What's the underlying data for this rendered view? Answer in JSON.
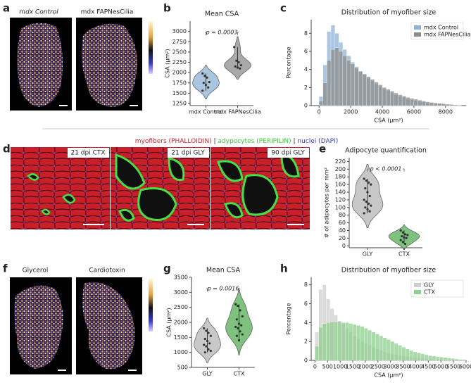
{
  "figure": {
    "panel_letters": [
      "a",
      "b",
      "c",
      "d",
      "e",
      "f",
      "g",
      "h"
    ],
    "a": {
      "labels": [
        "mdx Control",
        "mdx FAPNesCilia"
      ]
    },
    "d": {
      "legend": [
        {
          "text": "myofibers (PHALLOIDIN)",
          "color": "#d0202a"
        },
        {
          "text": " | ",
          "color": "#222222"
        },
        {
          "text": "adypocytes (PERIPILIN)",
          "color": "#3cc43c"
        },
        {
          "text": " | ",
          "color": "#222222"
        },
        {
          "text": "nuclei (DAPI)",
          "color": "#3a3ad0"
        }
      ],
      "labels": [
        "21 dpi CTX",
        "21 dpi GLY",
        "90 dpi GLY"
      ]
    },
    "f": {
      "labels": [
        "Glycerol",
        "Cardiotoxin"
      ]
    }
  },
  "chart_data": [
    {
      "type": "violin",
      "title": "Mean CSA",
      "ylabel": "CSA (μm²)",
      "annotation": "p = 0.0003",
      "categories": [
        "mdx Control",
        "mdx FAPNesCilia"
      ],
      "colors": [
        "#a9c6de",
        "#a9a9a9"
      ],
      "values": [
        [
          1980,
          1920,
          1880,
          1770,
          1750,
          1700,
          1640,
          1560
        ],
        [
          2620,
          2290,
          2250,
          2180,
          2150,
          2120,
          2100
        ]
      ],
      "ylim": [
        1200,
        3250
      ],
      "yticks": [
        1250,
        1500,
        1750,
        2000,
        2250,
        2500,
        2750,
        3000
      ]
    },
    {
      "type": "histogram",
      "title": "Distribution of myofiber size",
      "xlabel": "CSA (μm²)",
      "ylabel": "Percentage",
      "legend": "upper right",
      "bins": [
        0,
        250,
        500,
        750,
        1000,
        1250,
        1500,
        1750,
        2000,
        2250,
        2500,
        2750,
        3000,
        3250,
        3500,
        3750,
        4000,
        4250,
        4500,
        4750,
        5000,
        5250,
        5500,
        5750,
        6000,
        6250,
        6500,
        6750,
        7000,
        7250,
        7500,
        7750,
        8000,
        8250,
        8500,
        8750,
        9000
      ],
      "series": [
        {
          "name": "mdx Control",
          "color": "#8fb3d6",
          "values": [
            1.0,
            4.5,
            8.2,
            8.9,
            8.0,
            7.0,
            6.2,
            5.5,
            4.8,
            4.3,
            3.8,
            3.4,
            3.0,
            2.7,
            2.4,
            2.1,
            1.8,
            1.6,
            1.4,
            1.2,
            1.0,
            0.9,
            0.75,
            0.65,
            0.55,
            0.45,
            0.4,
            0.3,
            0.25,
            0.2,
            0.15,
            0.12,
            0.1,
            0.08,
            0.05,
            0.03
          ]
        },
        {
          "name": "mdx FAPNesCilia",
          "color": "#8c8c8c",
          "values": [
            0.5,
            2.5,
            5.0,
            6.2,
            6.4,
            6.0,
            5.5,
            5.0,
            4.6,
            4.2,
            3.8,
            3.5,
            3.2,
            2.9,
            2.6,
            2.3,
            2.0,
            1.8,
            1.6,
            1.4,
            1.2,
            1.05,
            0.9,
            0.8,
            0.7,
            0.6,
            0.5,
            0.42,
            0.35,
            0.3,
            0.25,
            0.2,
            0.15,
            0.12,
            0.08,
            0.05
          ]
        }
      ],
      "xlim": [
        -500,
        9300
      ],
      "xticks": [
        0,
        2000,
        4000,
        6000,
        8000
      ],
      "ylim": [
        0,
        9.5
      ],
      "yticks": [
        0,
        2,
        4,
        6,
        8
      ]
    },
    {
      "type": "violin",
      "title": "Adipocyte quantification",
      "ylabel": "# of adipocytes per mm²",
      "annotation": "p < 0.0001",
      "categories": [
        "GLY",
        "CTX"
      ],
      "colors": [
        "#c8c8c8",
        "#7fc27f"
      ],
      "values": [
        [
          175,
          170,
          165,
          160,
          150,
          140,
          130,
          120,
          115,
          110,
          105,
          100,
          95,
          90,
          85
        ],
        [
          40,
          35,
          30,
          28,
          25,
          22,
          20,
          15,
          10,
          5
        ]
      ],
      "ylim": [
        -5,
        230
      ],
      "yticks": [
        0,
        20,
        40,
        60,
        80,
        100,
        120,
        140,
        160,
        180,
        200,
        220
      ]
    },
    {
      "type": "violin",
      "title": "Mean CSA",
      "ylabel": "CSA (μm²)",
      "annotation": "p = 0.0016",
      "categories": [
        "GLY",
        "CTX"
      ],
      "colors": [
        "#c8c8c8",
        "#7fc27f"
      ],
      "values": [
        [
          1800,
          1720,
          1650,
          1550,
          1450,
          1380,
          1300,
          1250,
          1200,
          1100,
          1050,
          1000
        ],
        [
          2600,
          2550,
          2400,
          2200,
          2100,
          1950,
          1900,
          1850,
          1800,
          1700,
          1600,
          1550,
          1400
        ]
      ],
      "ylim": [
        500,
        3500
      ],
      "yticks": [
        500,
        1000,
        1500,
        2000,
        2500,
        3000,
        3500
      ]
    },
    {
      "type": "histogram",
      "title": "Distribution of myofiber size",
      "xlabel": "CSA (μm²)",
      "ylabel": "Percentage",
      "legend": "upper right",
      "bins": [
        0,
        150,
        300,
        450,
        600,
        750,
        900,
        1050,
        1200,
        1350,
        1500,
        1650,
        1800,
        1950,
        2100,
        2250,
        2400,
        2550,
        2700,
        2850,
        3000,
        3150,
        3300,
        3450,
        3600,
        3750,
        3900,
        4050,
        4200,
        4350,
        4500,
        4650,
        4800,
        4950,
        5100,
        5250,
        5400,
        5550,
        5700,
        5850,
        6000
      ],
      "series": [
        {
          "name": "GLY",
          "color": "#cfcfcf",
          "values": [
            3.0,
            7.5,
            8.0,
            6.5,
            5.5,
            4.8,
            4.2,
            3.8,
            3.4,
            3.0,
            2.6,
            2.3,
            2.0,
            1.8,
            1.6,
            1.4,
            1.2,
            1.05,
            0.9,
            0.8,
            0.7,
            0.6,
            0.5,
            0.45,
            0.4,
            0.35,
            0.3,
            0.25,
            0.2,
            0.18,
            0.15,
            0.12,
            0.1,
            0.08,
            0.07,
            0.06,
            0.05,
            0.04,
            0.03,
            0.02
          ]
        },
        {
          "name": "CTX",
          "color": "#8fcf8f",
          "values": [
            1.5,
            3.5,
            3.9,
            4.0,
            4.1,
            4.1,
            4.1,
            4.0,
            4.0,
            3.9,
            3.8,
            3.7,
            3.6,
            3.4,
            3.2,
            3.0,
            2.8,
            2.6,
            2.4,
            2.2,
            2.0,
            1.8,
            1.6,
            1.4,
            1.2,
            1.05,
            0.9,
            0.8,
            0.7,
            0.6,
            0.5,
            0.45,
            0.4,
            0.35,
            0.3,
            0.25,
            0.2,
            0.15,
            0.1,
            0.08
          ]
        }
      ],
      "xlim": [
        -150,
        6000
      ],
      "xticks": [
        0,
        500,
        1000,
        1500,
        2000,
        2500,
        3000,
        3500,
        4000,
        4500,
        5000,
        5500,
        6000
      ],
      "ylim": [
        0,
        8.8
      ],
      "yticks": [
        0,
        2,
        4,
        6,
        8
      ]
    }
  ]
}
